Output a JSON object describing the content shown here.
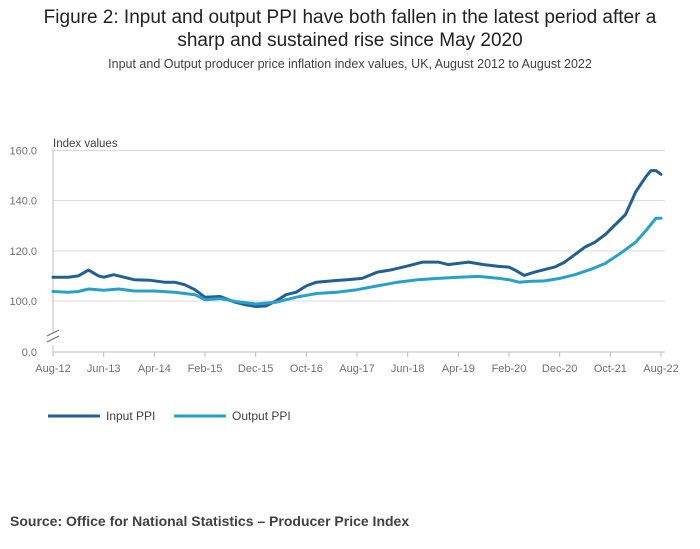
{
  "header": {
    "title_line1": "Figure 2: Input and output PPI have both fallen in the latest period after a",
    "title_line2": "sharp and sustained rise since May 2020",
    "subtitle": "Input and Output producer price inflation index values, UK, August 2012 to August 2022"
  },
  "footer": {
    "source": "Source: Office for National Statistics – Producer Price Index"
  },
  "chart_data": {
    "type": "line",
    "ylabel": "Index values",
    "yticks": [
      "0.0",
      "100.0",
      "120.0",
      "140.0",
      "160.0"
    ],
    "y_axis_break": true,
    "ylim": [
      0,
      160
    ],
    "xlim": [
      "2012-08",
      "2022-08"
    ],
    "x_tick_labels": [
      "Aug-12",
      "Jun-13",
      "Apr-14",
      "Feb-15",
      "Dec-15",
      "Oct-16",
      "Aug-17",
      "Jun-18",
      "Apr-19",
      "Feb-20",
      "Dec-20",
      "Oct-21",
      "Aug-22"
    ],
    "grid": true,
    "legend_position": "bottom-left",
    "series": [
      {
        "name": "Input PPI",
        "color": "#206095",
        "points": [
          [
            "2012-08",
            109.5
          ],
          [
            "2012-11",
            109.5
          ],
          [
            "2013-01",
            110.0
          ],
          [
            "2013-03",
            112.3
          ],
          [
            "2013-05",
            110.0
          ],
          [
            "2013-06",
            109.5
          ],
          [
            "2013-08",
            110.5
          ],
          [
            "2013-10",
            109.5
          ],
          [
            "2013-12",
            108.5
          ],
          [
            "2014-03",
            108.3
          ],
          [
            "2014-06",
            107.5
          ],
          [
            "2014-08",
            107.5
          ],
          [
            "2014-10",
            106.5
          ],
          [
            "2014-12",
            104.5
          ],
          [
            "2015-02",
            101.5
          ],
          [
            "2015-05",
            101.8
          ],
          [
            "2015-08",
            99.5
          ],
          [
            "2015-10",
            98.5
          ],
          [
            "2015-12",
            97.8
          ],
          [
            "2016-02",
            98.0
          ],
          [
            "2016-04",
            100.0
          ],
          [
            "2016-06",
            102.5
          ],
          [
            "2016-08",
            103.5
          ],
          [
            "2016-10",
            106.0
          ],
          [
            "2016-12",
            107.5
          ],
          [
            "2017-03",
            108.0
          ],
          [
            "2017-06",
            108.5
          ],
          [
            "2017-09",
            109.0
          ],
          [
            "2017-12",
            111.5
          ],
          [
            "2018-03",
            112.5
          ],
          [
            "2018-06",
            114.0
          ],
          [
            "2018-09",
            115.5
          ],
          [
            "2018-12",
            115.5
          ],
          [
            "2019-02",
            114.5
          ],
          [
            "2019-04",
            115.0
          ],
          [
            "2019-06",
            115.5
          ],
          [
            "2019-09",
            114.5
          ],
          [
            "2019-12",
            113.8
          ],
          [
            "2020-02",
            113.5
          ],
          [
            "2020-03",
            112.5
          ],
          [
            "2020-05",
            110.2
          ],
          [
            "2020-07",
            111.5
          ],
          [
            "2020-09",
            112.5
          ],
          [
            "2020-11",
            113.5
          ],
          [
            "2021-01",
            115.5
          ],
          [
            "2021-03",
            118.5
          ],
          [
            "2021-05",
            121.5
          ],
          [
            "2021-07",
            123.5
          ],
          [
            "2021-09",
            126.5
          ],
          [
            "2021-11",
            130.5
          ],
          [
            "2022-01",
            134.5
          ],
          [
            "2022-03",
            143.5
          ],
          [
            "2022-05",
            149.5
          ],
          [
            "2022-06",
            152.0
          ],
          [
            "2022-07",
            152.0
          ],
          [
            "2022-08",
            150.5
          ]
        ]
      },
      {
        "name": "Output PPI",
        "color": "#27a0cc",
        "points": [
          [
            "2012-08",
            103.8
          ],
          [
            "2012-11",
            103.5
          ],
          [
            "2013-01",
            103.8
          ],
          [
            "2013-03",
            104.8
          ],
          [
            "2013-06",
            104.3
          ],
          [
            "2013-09",
            104.8
          ],
          [
            "2013-12",
            104.0
          ],
          [
            "2014-04",
            104.0
          ],
          [
            "2014-08",
            103.5
          ],
          [
            "2014-12",
            102.5
          ],
          [
            "2015-02",
            100.5
          ],
          [
            "2015-05",
            101.0
          ],
          [
            "2015-08",
            99.8
          ],
          [
            "2015-12",
            98.8
          ],
          [
            "2016-04",
            99.5
          ],
          [
            "2016-08",
            101.5
          ],
          [
            "2016-12",
            103.0
          ],
          [
            "2017-04",
            103.5
          ],
          [
            "2017-08",
            104.5
          ],
          [
            "2017-12",
            106.0
          ],
          [
            "2018-04",
            107.5
          ],
          [
            "2018-08",
            108.5
          ],
          [
            "2018-12",
            109.0
          ],
          [
            "2019-04",
            109.5
          ],
          [
            "2019-08",
            109.8
          ],
          [
            "2019-12",
            109.0
          ],
          [
            "2020-02",
            108.5
          ],
          [
            "2020-04",
            107.5
          ],
          [
            "2020-06",
            107.8
          ],
          [
            "2020-09",
            108.0
          ],
          [
            "2020-12",
            109.0
          ],
          [
            "2021-03",
            110.5
          ],
          [
            "2021-06",
            112.5
          ],
          [
            "2021-09",
            115.0
          ],
          [
            "2021-12",
            119.0
          ],
          [
            "2022-03",
            123.5
          ],
          [
            "2022-05",
            128.0
          ],
          [
            "2022-07",
            133.0
          ],
          [
            "2022-08",
            133.0
          ]
        ]
      }
    ]
  }
}
